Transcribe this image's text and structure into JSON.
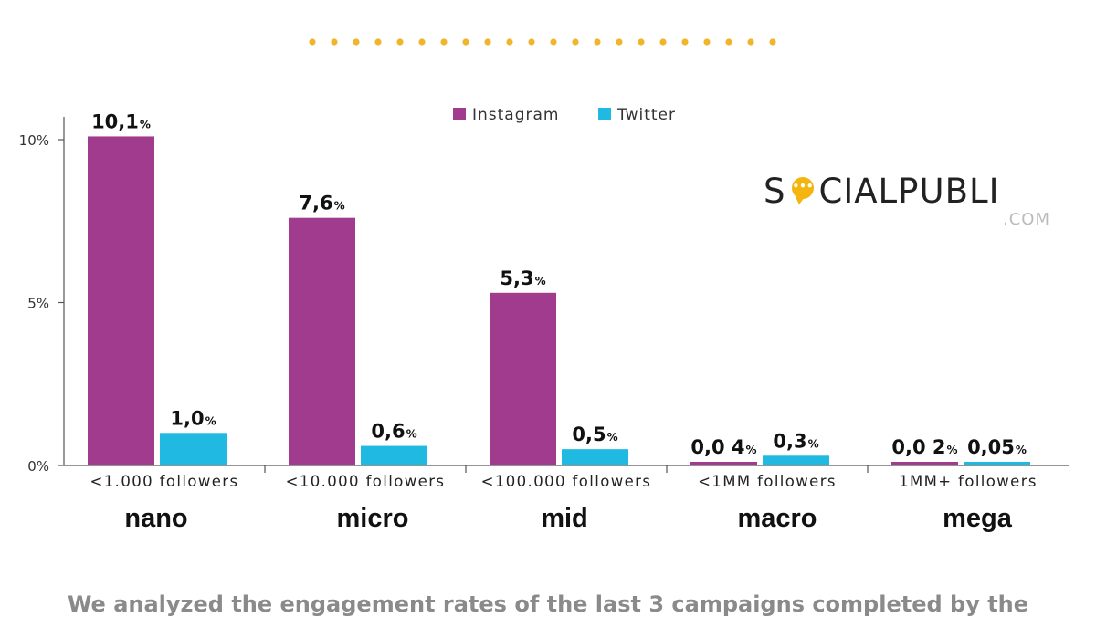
{
  "colors": {
    "instagram": "#a13b8e",
    "twitter": "#1fb9e2",
    "accent_dots": "#f0b52a"
  },
  "logo": {
    "brand_before": "S",
    "brand_after": "CIALPUBLI",
    "suffix": ".COM",
    "icon": "speech-bubble-icon"
  },
  "tiers": [
    "nano",
    "micro",
    "mid",
    "macro",
    "mega"
  ],
  "caption": "We analyzed the engagement rates of the last 3 campaigns completed by the",
  "chart_data": {
    "type": "bar",
    "categories": [
      "<1.000 followers",
      "<10.000 followers",
      "<100.000 followers",
      "<1MM followers",
      "1MM+ followers"
    ],
    "series": [
      {
        "name": "Instagram",
        "values": [
          10.1,
          7.6,
          5.3,
          0.04,
          0.02
        ],
        "labels": [
          "10,1",
          "7,6",
          "5,3",
          "0,0 4",
          "0,0 2"
        ]
      },
      {
        "name": "Twitter",
        "values": [
          1.0,
          0.6,
          0.5,
          0.3,
          0.05
        ],
        "labels": [
          "1,0",
          "0,6",
          "0,5",
          "0,3",
          "0,05"
        ]
      }
    ],
    "label_unit": "%",
    "ylim": [
      0,
      10.5
    ],
    "yticks": [
      0,
      5,
      10
    ],
    "ytick_labels": [
      "0%",
      "5%",
      "10%"
    ],
    "legend_position": "top-center",
    "grid": false
  }
}
